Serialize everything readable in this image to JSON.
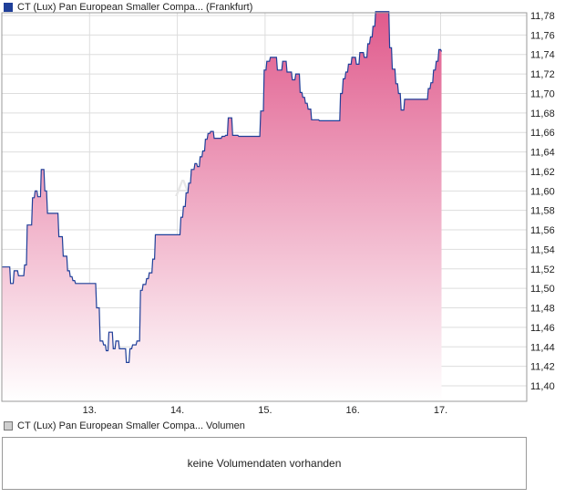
{
  "legend": {
    "price_label": "CT (Lux) Pan European Smaller Compa... (Frankfurt)",
    "volume_label": "CT (Lux) Pan European Smaller Compa... Volumen"
  },
  "volume": {
    "message": "keine Volumendaten vorhanden"
  },
  "colors": {
    "line": "#1f3f99",
    "fill_top": "#e05a8c",
    "fill_bottom": "#ffffff",
    "grid": "#dddddd",
    "frame": "#999999"
  },
  "chart_data": {
    "type": "area",
    "title": "",
    "xlabel": "",
    "ylabel": "",
    "x_ticks": [
      {
        "x": 1,
        "label": "13."
      },
      {
        "x": 2,
        "label": "14."
      },
      {
        "x": 3,
        "label": "15."
      },
      {
        "x": 4,
        "label": "16."
      },
      {
        "x": 5,
        "label": "17."
      }
    ],
    "y_ticks": [
      "11,40",
      "11,42",
      "11,44",
      "11,46",
      "11,48",
      "11,50",
      "11,52",
      "11,54",
      "11,56",
      "11,58",
      "11,60",
      "11,62",
      "11,64",
      "11,66",
      "11,68",
      "11,70",
      "11,72",
      "11,74",
      "11,76",
      "11,78"
    ],
    "ylim": [
      11.38,
      11.79
    ],
    "xlim": [
      0.0,
      5.98
    ],
    "grid": true,
    "series": [
      {
        "points": [
          [
            0.0,
            11.522
          ],
          [
            0.09,
            11.522
          ],
          [
            0.1,
            11.505
          ],
          [
            0.13,
            11.505
          ],
          [
            0.14,
            11.518
          ],
          [
            0.18,
            11.518
          ],
          [
            0.19,
            11.513
          ],
          [
            0.25,
            11.513
          ],
          [
            0.26,
            11.524
          ],
          [
            0.28,
            11.524
          ],
          [
            0.29,
            11.565
          ],
          [
            0.34,
            11.565
          ],
          [
            0.35,
            11.593
          ],
          [
            0.37,
            11.593
          ],
          [
            0.38,
            11.6
          ],
          [
            0.4,
            11.6
          ],
          [
            0.41,
            11.594
          ],
          [
            0.44,
            11.594
          ],
          [
            0.45,
            11.622
          ],
          [
            0.48,
            11.622
          ],
          [
            0.49,
            11.6
          ],
          [
            0.51,
            11.6
          ],
          [
            0.52,
            11.577
          ],
          [
            0.64,
            11.577
          ],
          [
            0.65,
            11.553
          ],
          [
            0.69,
            11.553
          ],
          [
            0.7,
            11.533
          ],
          [
            0.74,
            11.533
          ],
          [
            0.75,
            11.518
          ],
          [
            0.77,
            11.518
          ],
          [
            0.78,
            11.512
          ],
          [
            0.8,
            11.512
          ],
          [
            0.81,
            11.508
          ],
          [
            0.83,
            11.508
          ],
          [
            0.84,
            11.505
          ],
          [
            1.07,
            11.505
          ],
          [
            1.08,
            11.48
          ],
          [
            1.11,
            11.48
          ],
          [
            1.12,
            11.446
          ],
          [
            1.15,
            11.446
          ],
          [
            1.16,
            11.442
          ],
          [
            1.18,
            11.442
          ],
          [
            1.19,
            11.436
          ],
          [
            1.21,
            11.436
          ],
          [
            1.22,
            11.455
          ],
          [
            1.26,
            11.455
          ],
          [
            1.27,
            11.438
          ],
          [
            1.29,
            11.438
          ],
          [
            1.3,
            11.446
          ],
          [
            1.33,
            11.446
          ],
          [
            1.34,
            11.438
          ],
          [
            1.41,
            11.438
          ],
          [
            1.42,
            11.424
          ],
          [
            1.45,
            11.424
          ],
          [
            1.46,
            11.438
          ],
          [
            1.48,
            11.438
          ],
          [
            1.49,
            11.442
          ],
          [
            1.53,
            11.442
          ],
          [
            1.54,
            11.446
          ],
          [
            1.57,
            11.446
          ],
          [
            1.58,
            11.498
          ],
          [
            1.6,
            11.498
          ],
          [
            1.61,
            11.504
          ],
          [
            1.64,
            11.504
          ],
          [
            1.65,
            11.51
          ],
          [
            1.67,
            11.51
          ],
          [
            1.68,
            11.516
          ],
          [
            1.71,
            11.516
          ],
          [
            1.72,
            11.53
          ],
          [
            1.74,
            11.53
          ],
          [
            1.75,
            11.555
          ],
          [
            2.03,
            11.555
          ],
          [
            2.04,
            11.573
          ],
          [
            2.06,
            11.573
          ],
          [
            2.07,
            11.584
          ],
          [
            2.09,
            11.584
          ],
          [
            2.1,
            11.598
          ],
          [
            2.12,
            11.598
          ],
          [
            2.13,
            11.608
          ],
          [
            2.15,
            11.608
          ],
          [
            2.16,
            11.622
          ],
          [
            2.19,
            11.622
          ],
          [
            2.2,
            11.628
          ],
          [
            2.22,
            11.628
          ],
          [
            2.23,
            11.625
          ],
          [
            2.25,
            11.625
          ],
          [
            2.26,
            11.635
          ],
          [
            2.28,
            11.635
          ],
          [
            2.29,
            11.641
          ],
          [
            2.31,
            11.641
          ],
          [
            2.32,
            11.653
          ],
          [
            2.34,
            11.653
          ],
          [
            2.35,
            11.659
          ],
          [
            2.37,
            11.659
          ],
          [
            2.38,
            11.661
          ],
          [
            2.41,
            11.661
          ],
          [
            2.42,
            11.654
          ],
          [
            2.5,
            11.654
          ],
          [
            2.51,
            11.656
          ],
          [
            2.54,
            11.656
          ],
          [
            2.55,
            11.657
          ],
          [
            2.57,
            11.657
          ],
          [
            2.58,
            11.675
          ],
          [
            2.62,
            11.675
          ],
          [
            2.63,
            11.657
          ],
          [
            2.69,
            11.657
          ],
          [
            2.7,
            11.656
          ],
          [
            2.94,
            11.656
          ],
          [
            2.95,
            11.682
          ],
          [
            2.98,
            11.682
          ],
          [
            2.99,
            11.724
          ],
          [
            3.01,
            11.724
          ],
          [
            3.02,
            11.733
          ],
          [
            3.05,
            11.733
          ],
          [
            3.06,
            11.737
          ],
          [
            3.13,
            11.737
          ],
          [
            3.14,
            11.724
          ],
          [
            3.19,
            11.724
          ],
          [
            3.2,
            11.733
          ],
          [
            3.24,
            11.733
          ],
          [
            3.25,
            11.722
          ],
          [
            3.3,
            11.722
          ],
          [
            3.31,
            11.714
          ],
          [
            3.34,
            11.714
          ],
          [
            3.35,
            11.72
          ],
          [
            3.39,
            11.72
          ],
          [
            3.4,
            11.701
          ],
          [
            3.42,
            11.701
          ],
          [
            3.43,
            11.696
          ],
          [
            3.45,
            11.696
          ],
          [
            3.46,
            11.69
          ],
          [
            3.48,
            11.69
          ],
          [
            3.49,
            11.684
          ],
          [
            3.52,
            11.684
          ],
          [
            3.53,
            11.673
          ],
          [
            3.61,
            11.673
          ],
          [
            3.62,
            11.672
          ],
          [
            3.85,
            11.672
          ],
          [
            3.86,
            11.7
          ],
          [
            3.88,
            11.7
          ],
          [
            3.89,
            11.715
          ],
          [
            3.91,
            11.715
          ],
          [
            3.92,
            11.722
          ],
          [
            3.94,
            11.722
          ],
          [
            3.95,
            11.73
          ],
          [
            3.98,
            11.73
          ],
          [
            3.99,
            11.737
          ],
          [
            4.03,
            11.737
          ],
          [
            4.04,
            11.73
          ],
          [
            4.07,
            11.73
          ],
          [
            4.08,
            11.742
          ],
          [
            4.12,
            11.742
          ],
          [
            4.13,
            11.737
          ],
          [
            4.16,
            11.737
          ],
          [
            4.17,
            11.751
          ],
          [
            4.19,
            11.751
          ],
          [
            4.2,
            11.758
          ],
          [
            4.22,
            11.758
          ],
          [
            4.23,
            11.769
          ],
          [
            4.25,
            11.769
          ],
          [
            4.26,
            11.784
          ],
          [
            4.41,
            11.784
          ],
          [
            4.42,
            11.747
          ],
          [
            4.44,
            11.747
          ],
          [
            4.45,
            11.725
          ],
          [
            4.48,
            11.725
          ],
          [
            4.49,
            11.71
          ],
          [
            4.51,
            11.71
          ],
          [
            4.52,
            11.7
          ],
          [
            4.54,
            11.7
          ],
          [
            4.55,
            11.683
          ],
          [
            4.58,
            11.683
          ],
          [
            4.59,
            11.694
          ],
          [
            4.85,
            11.694
          ],
          [
            4.86,
            11.705
          ],
          [
            4.88,
            11.705
          ],
          [
            4.89,
            11.711
          ],
          [
            4.91,
            11.711
          ],
          [
            4.92,
            11.724
          ],
          [
            4.94,
            11.724
          ],
          [
            4.95,
            11.733
          ],
          [
            4.97,
            11.733
          ],
          [
            4.98,
            11.745
          ],
          [
            5.0,
            11.745
          ],
          [
            5.01,
            11.743
          ]
        ]
      }
    ]
  }
}
